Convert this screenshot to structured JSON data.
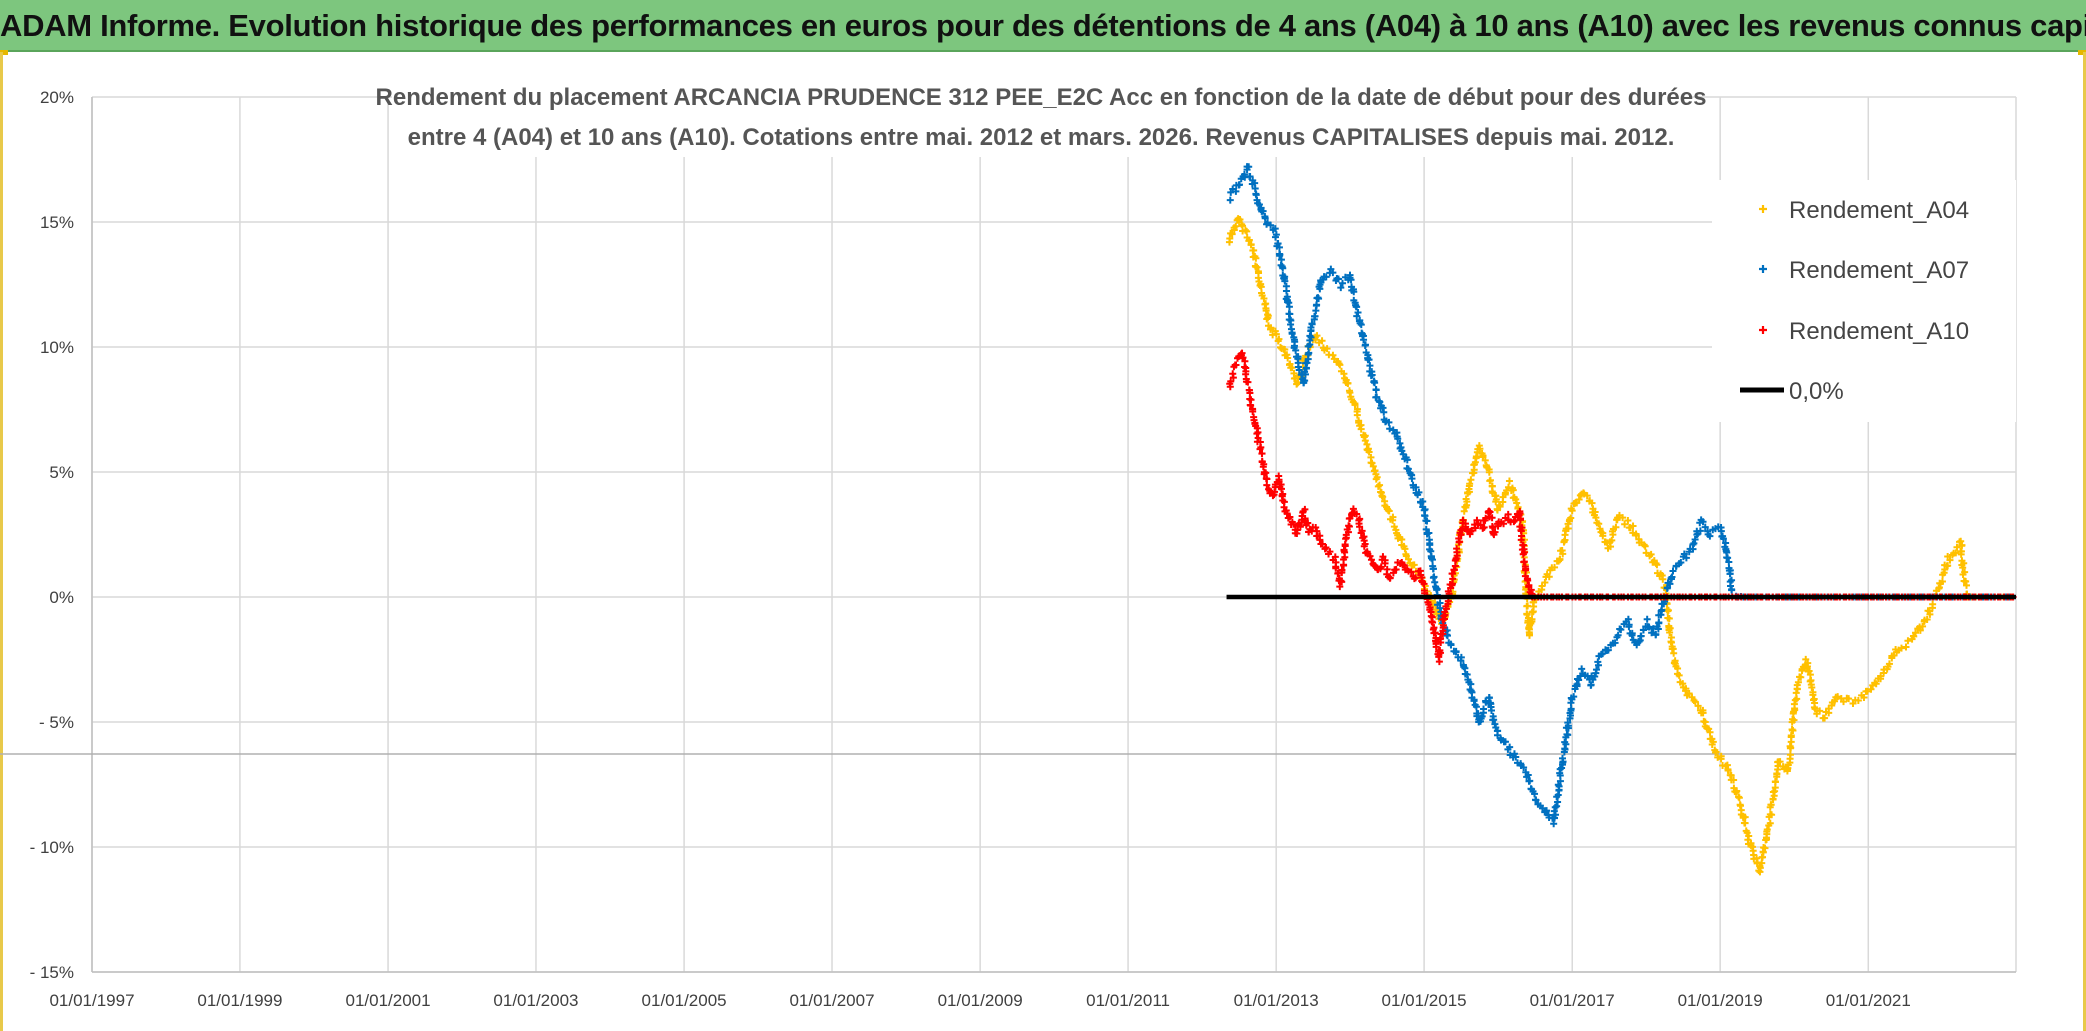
{
  "banner": {
    "title": "ADAM Informe. Evolution historique des performances en euros pour des détentions de 4 ans (A04) à 10 ans (A10) avec les revenus connus capitalisés"
  },
  "chart_data": {
    "type": "scatter",
    "title_lines": [
      "Rendement du placement ARCANCIA PRUDENCE 312 PEE_E2C Acc en fonction de la date de début pour des durées",
      "entre 4 (A04) et 10 ans (A10). Cotations entre mai. 2012 et mars. 2026. Revenus CAPITALISES depuis mai. 2012."
    ],
    "xlabel": "",
    "ylabel": "",
    "x_range": [
      "1997-01-01",
      "2022-12-31"
    ],
    "y_range": [
      -15,
      20
    ],
    "x_ticks": [
      "01/01/1997",
      "01/01/1999",
      "01/01/2001",
      "01/01/2003",
      "01/01/2005",
      "01/01/2007",
      "01/01/2009",
      "01/01/2011",
      "01/01/2013",
      "01/01/2015",
      "01/01/2017",
      "01/01/2019",
      "01/01/2021"
    ],
    "y_ticks": [
      {
        "value": 20,
        "label": "20%"
      },
      {
        "value": 15,
        "label": "15%"
      },
      {
        "value": 10,
        "label": "10%"
      },
      {
        "value": 5,
        "label": "5%"
      },
      {
        "value": 0,
        "label": "0%"
      },
      {
        "value": -5,
        "label": "- 5%"
      },
      {
        "value": -10,
        "label": "- 10%"
      },
      {
        "value": -15,
        "label": "- 15%"
      }
    ],
    "grid": true,
    "legend_position": "top-right",
    "series": [
      {
        "name": "Rendement_A04",
        "color": "#ffc000",
        "marker": "plus",
        "points": [
          [
            "2012-05-15",
            14.2
          ],
          [
            "2012-07-01",
            15.2
          ],
          [
            "2012-09-01",
            14.0
          ],
          [
            "2012-10-15",
            12.5
          ],
          [
            "2012-12-01",
            10.8
          ],
          [
            "2013-01-15",
            10.2
          ],
          [
            "2013-03-01",
            9.5
          ],
          [
            "2013-04-15",
            8.5
          ],
          [
            "2013-06-01",
            9.8
          ],
          [
            "2013-07-15",
            10.5
          ],
          [
            "2013-09-01",
            10.0
          ],
          [
            "2013-10-15",
            9.6
          ],
          [
            "2013-12-01",
            9.0
          ],
          [
            "2014-02-01",
            7.5
          ],
          [
            "2014-04-01",
            5.8
          ],
          [
            "2014-06-01",
            4.2
          ],
          [
            "2014-08-01",
            3.0
          ],
          [
            "2014-10-01",
            1.8
          ],
          [
            "2014-12-01",
            1.0
          ],
          [
            "2015-02-01",
            0.0
          ],
          [
            "2015-04-01",
            -1.0
          ],
          [
            "2015-05-15",
            0.0
          ],
          [
            "2015-07-01",
            2.5
          ],
          [
            "2015-08-15",
            4.5
          ],
          [
            "2015-10-01",
            6.0
          ],
          [
            "2015-11-15",
            5.0
          ],
          [
            "2016-01-01",
            3.5
          ],
          [
            "2016-03-01",
            4.5
          ],
          [
            "2016-05-01",
            3.0
          ],
          [
            "2016-06-01",
            -1.5
          ],
          [
            "2016-07-01",
            0.0
          ],
          [
            "2016-09-01",
            0.8
          ],
          [
            "2016-11-01",
            1.5
          ],
          [
            "2017-01-01",
            3.5
          ],
          [
            "2017-02-15",
            4.2
          ],
          [
            "2017-04-01",
            3.8
          ],
          [
            "2017-05-15",
            2.8
          ],
          [
            "2017-07-01",
            2.0
          ],
          [
            "2017-08-15",
            3.2
          ],
          [
            "2017-10-01",
            3.0
          ],
          [
            "2017-12-01",
            2.2
          ],
          [
            "2018-02-01",
            1.5
          ],
          [
            "2018-04-01",
            0.5
          ],
          [
            "2018-05-01",
            -1.5
          ],
          [
            "2018-06-01",
            -3.0
          ],
          [
            "2018-08-01",
            -4.0
          ],
          [
            "2018-10-01",
            -4.5
          ],
          [
            "2018-12-01",
            -6.0
          ],
          [
            "2019-02-01",
            -6.8
          ],
          [
            "2019-04-01",
            -8.0
          ],
          [
            "2019-06-01",
            -10.0
          ],
          [
            "2019-07-15",
            -11.0
          ],
          [
            "2019-09-01",
            -9.0
          ],
          [
            "2019-10-15",
            -6.5
          ],
          [
            "2019-12-01",
            -7.0
          ],
          [
            "2020-01-15",
            -3.5
          ],
          [
            "2020-03-01",
            -2.5
          ],
          [
            "2020-04-15",
            -4.5
          ],
          [
            "2020-06-01",
            -4.8
          ],
          [
            "2020-08-01",
            -4.0
          ],
          [
            "2020-10-01",
            -4.2
          ],
          [
            "2020-12-01",
            -4.0
          ],
          [
            "2021-02-01",
            -3.5
          ],
          [
            "2021-04-01",
            -2.8
          ],
          [
            "2021-06-01",
            -2.0
          ],
          [
            "2021-08-01",
            -1.8
          ],
          [
            "2021-10-01",
            -1.0
          ],
          [
            "2021-12-01",
            0.0
          ],
          [
            "2022-02-01",
            1.5
          ],
          [
            "2022-04-01",
            2.2
          ],
          [
            "2022-05-01",
            0.0
          ],
          [
            "2022-07-01",
            0.0
          ],
          [
            "2022-09-01",
            0.0
          ],
          [
            "2022-11-01",
            0.0
          ],
          [
            "2022-12-31",
            0.0
          ]
        ]
      },
      {
        "name": "Rendement_A07",
        "color": "#0070c0",
        "marker": "plus",
        "points": [
          [
            "2012-05-15",
            16.0
          ],
          [
            "2012-07-01",
            16.5
          ],
          [
            "2012-08-15",
            17.2
          ],
          [
            "2012-10-01",
            16.0
          ],
          [
            "2012-11-15",
            15.0
          ],
          [
            "2013-01-01",
            14.5
          ],
          [
            "2013-02-15",
            12.5
          ],
          [
            "2013-04-01",
            10.0
          ],
          [
            "2013-05-15",
            8.5
          ],
          [
            "2013-07-01",
            11.0
          ],
          [
            "2013-08-15",
            12.8
          ],
          [
            "2013-10-01",
            13.0
          ],
          [
            "2013-11-15",
            12.5
          ],
          [
            "2014-01-01",
            12.8
          ],
          [
            "2014-02-15",
            11.0
          ],
          [
            "2014-04-01",
            9.5
          ],
          [
            "2014-05-15",
            8.0
          ],
          [
            "2014-07-01",
            7.0
          ],
          [
            "2014-08-15",
            6.5
          ],
          [
            "2014-10-01",
            5.5
          ],
          [
            "2014-11-15",
            4.5
          ],
          [
            "2015-01-01",
            3.5
          ],
          [
            "2015-02-15",
            1.0
          ],
          [
            "2015-04-01",
            -1.0
          ],
          [
            "2015-05-15",
            -2.0
          ],
          [
            "2015-07-01",
            -2.5
          ],
          [
            "2015-08-15",
            -3.5
          ],
          [
            "2015-10-01",
            -5.0
          ],
          [
            "2015-11-15",
            -4.0
          ],
          [
            "2016-01-01",
            -5.5
          ],
          [
            "2016-02-15",
            -6.0
          ],
          [
            "2016-04-01",
            -6.5
          ],
          [
            "2016-05-15",
            -7.0
          ],
          [
            "2016-07-01",
            -8.0
          ],
          [
            "2016-08-15",
            -8.5
          ],
          [
            "2016-10-01",
            -9.0
          ],
          [
            "2016-11-15",
            -6.5
          ],
          [
            "2017-01-01",
            -4.0
          ],
          [
            "2017-02-15",
            -3.0
          ],
          [
            "2017-04-01",
            -3.5
          ],
          [
            "2017-05-15",
            -2.5
          ],
          [
            "2017-07-01",
            -2.0
          ],
          [
            "2017-08-15",
            -1.5
          ],
          [
            "2017-10-01",
            -1.0
          ],
          [
            "2017-11-15",
            -2.0
          ],
          [
            "2018-01-01",
            -1.0
          ],
          [
            "2018-02-15",
            -1.5
          ],
          [
            "2018-04-01",
            0.0
          ],
          [
            "2018-05-15",
            1.0
          ],
          [
            "2018-07-01",
            1.5
          ],
          [
            "2018-08-15",
            2.0
          ],
          [
            "2018-10-01",
            3.0
          ],
          [
            "2018-11-15",
            2.5
          ],
          [
            "2019-01-01",
            2.8
          ],
          [
            "2019-02-01",
            2.0
          ],
          [
            "2019-03-01",
            0.2
          ],
          [
            "2019-05-01",
            0.0
          ],
          [
            "2019-08-01",
            0.0
          ],
          [
            "2019-11-01",
            0.0
          ],
          [
            "2020-02-01",
            0.0
          ],
          [
            "2020-06-01",
            0.0
          ],
          [
            "2020-10-01",
            0.0
          ],
          [
            "2021-02-01",
            0.0
          ],
          [
            "2021-06-01",
            0.0
          ],
          [
            "2021-10-01",
            0.0
          ],
          [
            "2022-02-01",
            0.0
          ],
          [
            "2022-06-01",
            0.0
          ],
          [
            "2022-10-01",
            0.0
          ],
          [
            "2022-12-31",
            0.0
          ]
        ]
      },
      {
        "name": "Rendement_A10",
        "color": "#ff0000",
        "marker": "plus",
        "points": [
          [
            "2012-05-15",
            8.5
          ],
          [
            "2012-06-15",
            9.2
          ],
          [
            "2012-07-15",
            9.8
          ],
          [
            "2012-08-15",
            8.5
          ],
          [
            "2012-09-15",
            7.0
          ],
          [
            "2012-10-15",
            6.0
          ],
          [
            "2012-11-15",
            4.5
          ],
          [
            "2012-12-15",
            4.0
          ],
          [
            "2013-01-15",
            4.8
          ],
          [
            "2013-02-15",
            3.5
          ],
          [
            "2013-03-15",
            3.0
          ],
          [
            "2013-04-15",
            2.5
          ],
          [
            "2013-05-15",
            3.5
          ],
          [
            "2013-06-15",
            2.5
          ],
          [
            "2013-07-15",
            2.8
          ],
          [
            "2013-08-15",
            2.0
          ],
          [
            "2013-09-15",
            1.8
          ],
          [
            "2013-10-15",
            1.5
          ],
          [
            "2013-11-15",
            0.5
          ],
          [
            "2013-12-15",
            2.5
          ],
          [
            "2014-01-15",
            3.5
          ],
          [
            "2014-02-15",
            3.0
          ],
          [
            "2014-03-15",
            2.0
          ],
          [
            "2014-04-15",
            1.5
          ],
          [
            "2014-05-15",
            1.0
          ],
          [
            "2014-06-15",
            1.5
          ],
          [
            "2014-07-15",
            0.8
          ],
          [
            "2014-08-15",
            1.2
          ],
          [
            "2014-09-15",
            1.5
          ],
          [
            "2014-10-15",
            1.0
          ],
          [
            "2014-11-15",
            0.8
          ],
          [
            "2014-12-15",
            1.0
          ],
          [
            "2015-01-15",
            0.0
          ],
          [
            "2015-02-15",
            -1.0
          ],
          [
            "2015-03-15",
            -2.5
          ],
          [
            "2015-04-15",
            -0.5
          ],
          [
            "2015-05-15",
            0.5
          ],
          [
            "2015-06-15",
            2.0
          ],
          [
            "2015-07-15",
            3.0
          ],
          [
            "2015-08-15",
            2.5
          ],
          [
            "2015-09-15",
            3.0
          ],
          [
            "2015-10-15",
            2.8
          ],
          [
            "2015-11-15",
            3.5
          ],
          [
            "2015-12-15",
            2.5
          ],
          [
            "2016-01-15",
            3.0
          ],
          [
            "2016-02-15",
            3.2
          ],
          [
            "2016-03-15",
            3.0
          ],
          [
            "2016-04-15",
            3.5
          ],
          [
            "2016-05-15",
            1.0
          ],
          [
            "2016-06-15",
            0.0
          ],
          [
            "2016-08-01",
            0.0
          ],
          [
            "2016-10-01",
            0.0
          ],
          [
            "2016-12-01",
            0.0
          ],
          [
            "2017-02-01",
            0.0
          ],
          [
            "2017-04-01",
            0.0
          ],
          [
            "2017-06-01",
            0.0
          ],
          [
            "2017-08-01",
            0.0
          ],
          [
            "2017-10-01",
            0.0
          ],
          [
            "2017-12-01",
            0.0
          ],
          [
            "2018-02-01",
            0.0
          ],
          [
            "2018-04-01",
            0.0
          ],
          [
            "2018-06-01",
            0.0
          ],
          [
            "2018-08-01",
            0.0
          ],
          [
            "2018-10-01",
            0.0
          ],
          [
            "2018-12-01",
            0.0
          ],
          [
            "2019-02-01",
            0.0
          ],
          [
            "2019-04-01",
            0.0
          ],
          [
            "2019-06-01",
            0.0
          ],
          [
            "2019-08-01",
            0.0
          ],
          [
            "2019-10-01",
            0.0
          ],
          [
            "2019-12-01",
            0.0
          ],
          [
            "2020-02-01",
            0.0
          ],
          [
            "2020-04-01",
            0.0
          ],
          [
            "2020-06-01",
            0.0
          ],
          [
            "2020-08-01",
            0.0
          ],
          [
            "2020-10-01",
            0.0
          ],
          [
            "2020-12-01",
            0.0
          ],
          [
            "2021-02-01",
            0.0
          ],
          [
            "2021-04-01",
            0.0
          ],
          [
            "2021-06-01",
            0.0
          ],
          [
            "2021-08-01",
            0.0
          ],
          [
            "2021-10-01",
            0.0
          ],
          [
            "2021-12-01",
            0.0
          ],
          [
            "2022-02-01",
            0.0
          ],
          [
            "2022-04-01",
            0.0
          ],
          [
            "2022-06-01",
            0.0
          ],
          [
            "2022-08-01",
            0.0
          ],
          [
            "2022-10-01",
            0.0
          ],
          [
            "2022-12-31",
            0.0
          ]
        ]
      },
      {
        "name": "0,0%",
        "color": "#000000",
        "marker": "line",
        "points": [
          [
            "2012-05-01",
            0
          ],
          [
            "2022-12-31",
            0
          ]
        ]
      }
    ]
  }
}
